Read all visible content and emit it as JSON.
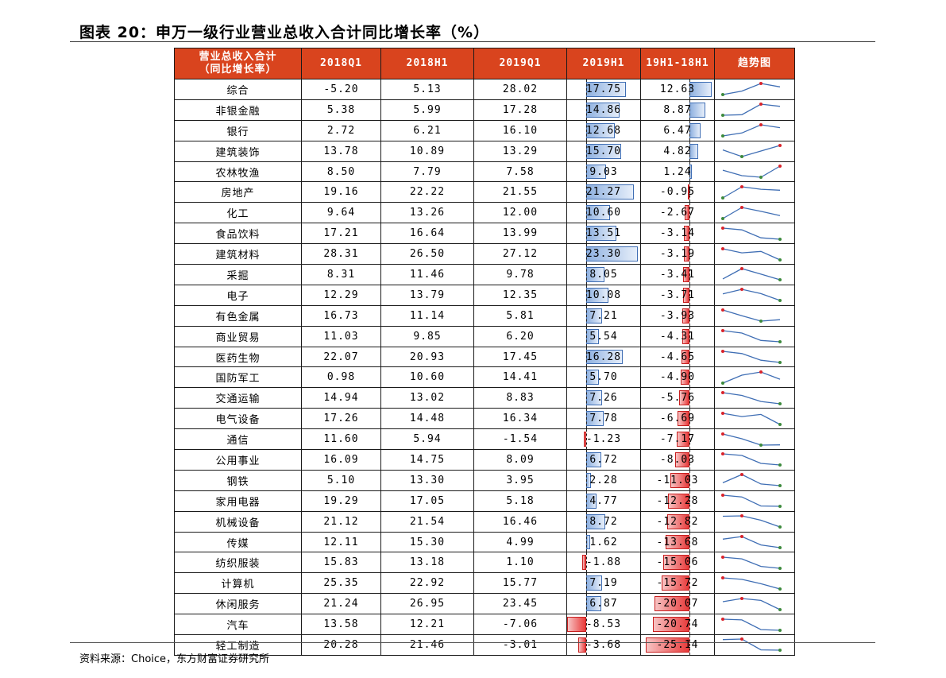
{
  "title": "图表 20：申万一级行业营业总收入合计同比增长率（%）",
  "source": "资料来源：Choice，东方财富证券研究所",
  "colors": {
    "header": "#d9441e",
    "positive_bar": "#6f95d2",
    "negative_bar": "#e83a3a",
    "spark_line": "#3f6eb4",
    "spark_max": "#d9222a",
    "spark_min": "#3c8a3c"
  },
  "headers": {
    "name_line1": "营业总收入合计",
    "name_line2": "（同比增长率）",
    "c1": "2018Q1",
    "c2": "2018H1",
    "c3": "2019Q1",
    "c4": "2019H1",
    "c5": "19H1-18H1",
    "c6": "趋势图"
  },
  "rows": [
    {
      "name": "综合",
      "q1_18": "-5.20",
      "h1_18": "5.13",
      "q1_19": "28.02",
      "h1_19": "17.75",
      "diff": "12.63"
    },
    {
      "name": "非银金融",
      "q1_18": "5.38",
      "h1_18": "5.99",
      "q1_19": "17.28",
      "h1_19": "14.86",
      "diff": "8.87"
    },
    {
      "name": "银行",
      "q1_18": "2.72",
      "h1_18": "6.21",
      "q1_19": "16.10",
      "h1_19": "12.68",
      "diff": "6.47"
    },
    {
      "name": "建筑装饰",
      "q1_18": "13.78",
      "h1_18": "10.89",
      "q1_19": "13.29",
      "h1_19": "15.70",
      "diff": "4.82"
    },
    {
      "name": "农林牧渔",
      "q1_18": "8.50",
      "h1_18": "7.79",
      "q1_19": "7.58",
      "h1_19": "9.03",
      "diff": "1.24"
    },
    {
      "name": "房地产",
      "q1_18": "19.16",
      "h1_18": "22.22",
      "q1_19": "21.55",
      "h1_19": "21.27",
      "diff": "-0.95"
    },
    {
      "name": "化工",
      "q1_18": "9.64",
      "h1_18": "13.26",
      "q1_19": "12.00",
      "h1_19": "10.60",
      "diff": "-2.67"
    },
    {
      "name": "食品饮料",
      "q1_18": "17.21",
      "h1_18": "16.64",
      "q1_19": "13.99",
      "h1_19": "13.51",
      "diff": "-3.14"
    },
    {
      "name": "建筑材料",
      "q1_18": "28.31",
      "h1_18": "26.50",
      "q1_19": "27.12",
      "h1_19": "23.30",
      "diff": "-3.19"
    },
    {
      "name": "采掘",
      "q1_18": "8.31",
      "h1_18": "11.46",
      "q1_19": "9.78",
      "h1_19": "8.05",
      "diff": "-3.41"
    },
    {
      "name": "电子",
      "q1_18": "12.29",
      "h1_18": "13.79",
      "q1_19": "12.35",
      "h1_19": "10.08",
      "diff": "-3.71"
    },
    {
      "name": "有色金属",
      "q1_18": "16.73",
      "h1_18": "11.14",
      "q1_19": "5.81",
      "h1_19": "7.21",
      "diff": "-3.93"
    },
    {
      "name": "商业贸易",
      "q1_18": "11.03",
      "h1_18": "9.85",
      "q1_19": "6.20",
      "h1_19": "5.54",
      "diff": "-4.31"
    },
    {
      "name": "医药生物",
      "q1_18": "22.07",
      "h1_18": "20.93",
      "q1_19": "17.45",
      "h1_19": "16.28",
      "diff": "-4.65"
    },
    {
      "name": "国防军工",
      "q1_18": "0.98",
      "h1_18": "10.60",
      "q1_19": "14.41",
      "h1_19": "5.70",
      "diff": "-4.90"
    },
    {
      "name": "交通运输",
      "q1_18": "14.94",
      "h1_18": "13.02",
      "q1_19": "8.83",
      "h1_19": "7.26",
      "diff": "-5.76"
    },
    {
      "name": "电气设备",
      "q1_18": "17.26",
      "h1_18": "14.48",
      "q1_19": "16.34",
      "h1_19": "7.78",
      "diff": "-6.69"
    },
    {
      "name": "通信",
      "q1_18": "11.60",
      "h1_18": "5.94",
      "q1_19": "-1.54",
      "h1_19": "-1.23",
      "diff": "-7.17"
    },
    {
      "name": "公用事业",
      "q1_18": "16.09",
      "h1_18": "14.75",
      "q1_19": "8.09",
      "h1_19": "6.72",
      "diff": "-8.03"
    },
    {
      "name": "钢铁",
      "q1_18": "5.10",
      "h1_18": "13.30",
      "q1_19": "3.95",
      "h1_19": "2.28",
      "diff": "-11.03"
    },
    {
      "name": "家用电器",
      "q1_18": "19.29",
      "h1_18": "17.05",
      "q1_19": "5.18",
      "h1_19": "4.77",
      "diff": "-12.28"
    },
    {
      "name": "机械设备",
      "q1_18": "21.12",
      "h1_18": "21.54",
      "q1_19": "16.46",
      "h1_19": "8.72",
      "diff": "-12.82"
    },
    {
      "name": "传媒",
      "q1_18": "12.11",
      "h1_18": "15.30",
      "q1_19": "4.99",
      "h1_19": "1.62",
      "diff": "-13.68"
    },
    {
      "name": "纺织服装",
      "q1_18": "15.83",
      "h1_18": "13.18",
      "q1_19": "1.10",
      "h1_19": "-1.88",
      "diff": "-15.06"
    },
    {
      "name": "计算机",
      "q1_18": "25.35",
      "h1_18": "22.92",
      "q1_19": "15.77",
      "h1_19": "7.19",
      "diff": "-15.72"
    },
    {
      "name": "休闲服务",
      "q1_18": "21.24",
      "h1_18": "26.95",
      "q1_19": "23.45",
      "h1_19": "6.87",
      "diff": "-20.07"
    },
    {
      "name": "汽车",
      "q1_18": "13.58",
      "h1_18": "12.21",
      "q1_19": "-7.06",
      "h1_19": "-8.53",
      "diff": "-20.74"
    },
    {
      "name": "轻工制造",
      "q1_18": "20.28",
      "h1_18": "21.46",
      "q1_19": "-3.01",
      "h1_19": "-3.68",
      "diff": "-25.14"
    }
  ]
}
